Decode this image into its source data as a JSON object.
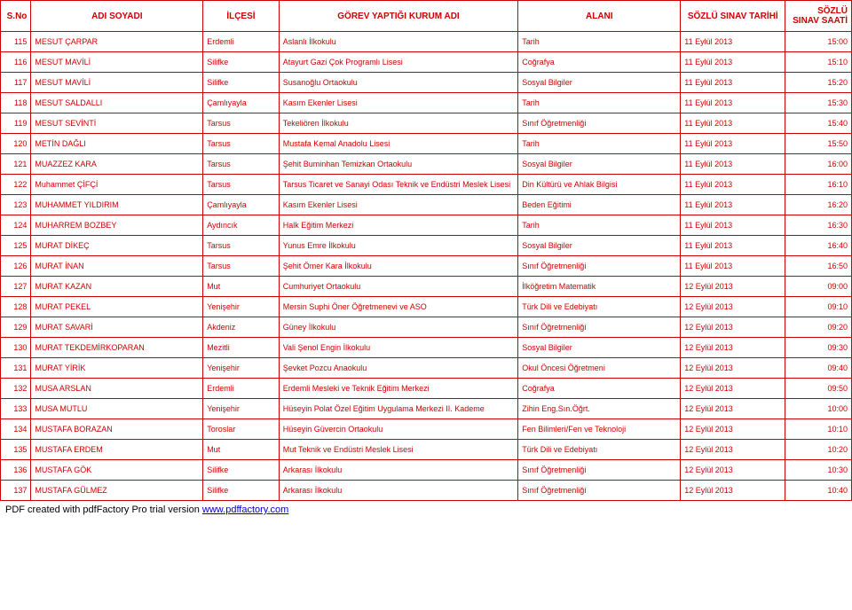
{
  "columns": [
    "S.No",
    "ADI SOYADI",
    "İLÇESİ",
    "GÖREV YAPTIĞI KURUM ADI",
    "ALANI",
    "SÖZLÜ SINAV TARİHİ",
    "SÖZLÜ SINAV SAATİ"
  ],
  "rows": [
    [
      "115",
      "MESUT ÇARPAR",
      "Erdemli",
      "Aslanlı İlkokulu",
      "Tarih",
      "11 Eylül 2013",
      "15:00"
    ],
    [
      "116",
      "MESUT MAVİLİ",
      "Silifke",
      "Atayurt Gazi Çok Programlı Lisesi",
      "Coğrafya",
      "11 Eylül 2013",
      "15:10"
    ],
    [
      "117",
      "MESUT MAVİLİ",
      "Silifke",
      "Susanoğlu Ortaokulu",
      "Sosyal Bilgiler",
      "11 Eylül 2013",
      "15:20"
    ],
    [
      "118",
      "MESUT SALDALLI",
      "Çamlıyayla",
      "Kasım Ekenler Lisesi",
      "Tarih",
      "11 Eylül 2013",
      "15:30"
    ],
    [
      "119",
      "MESUT SEVİNTİ",
      "Tarsus",
      "Tekeliören İlkokulu",
      "Sınıf Öğretmenliği",
      "11 Eylül 2013",
      "15:40"
    ],
    [
      "120",
      "METİN DAĞLI",
      "Tarsus",
      "Mustafa Kemal Anadolu Lisesi",
      "Tarih",
      "11 Eylül 2013",
      "15:50"
    ],
    [
      "121",
      "MUAZZEZ KARA",
      "Tarsus",
      "Şehit Buminhan Temizkan Ortaokulu",
      "Sosyal Bilgiler",
      "11 Eylül 2013",
      "16:00"
    ],
    [
      "122",
      "Muhammet ÇİFÇİ",
      "Tarsus",
      "Tarsus Ticaret ve Sanayi Odası Teknik ve Endüstri Meslek Lisesi",
      "Din Kültürü ve Ahlak Bilgisi",
      "11 Eylül 2013",
      "16:10"
    ],
    [
      "123",
      "MUHAMMET YILDIRIM",
      "Çamlıyayla",
      "Kasım Ekenler Lisesi",
      "Beden Eğitimi",
      "11 Eylül 2013",
      "16:20"
    ],
    [
      "124",
      "MUHARREM BOZBEY",
      "Aydıncık",
      "Halk Eğitim Merkezi",
      "Tarih",
      "11 Eylül 2013",
      "16:30"
    ],
    [
      "125",
      "MURAT DİKEÇ",
      "Tarsus",
      "Yunus Emre İlkokulu",
      "Sosyal Bilgiler",
      "11 Eylül 2013",
      "16:40"
    ],
    [
      "126",
      "MURAT İNAN",
      "Tarsus",
      "Şehit Ömer Kara İlkokulu",
      "Sınıf Öğretmenliği",
      "11 Eylül 2013",
      "16:50"
    ],
    [
      "127",
      "MURAT KAZAN",
      "Mut",
      "Cumhuriyet Ortaokulu",
      "İlköğretim Matematik",
      "12 Eylül 2013",
      "09:00"
    ],
    [
      "128",
      "MURAT PEKEL",
      "Yenişehir",
      "Mersin Suphi Öner Öğretmenevi ve ASO",
      "Türk Dili ve Edebiyatı",
      "12 Eylül 2013",
      "09:10"
    ],
    [
      "129",
      "MURAT SAVARİ",
      "Akdeniz",
      "Güney İlkokulu",
      "Sınıf Öğretmenliği",
      "12 Eylül 2013",
      "09:20"
    ],
    [
      "130",
      "MURAT TEKDEMİRKOPARAN",
      "Mezitli",
      "Vali Şenol Engin İlkokulu",
      "Sosyal Bilgiler",
      "12 Eylül 2013",
      "09:30"
    ],
    [
      "131",
      "MURAT YİRİK",
      "Yenişehir",
      "Şevket Pozcu Anaokulu",
      "Okul Öncesi Öğretmeni",
      "12 Eylül 2013",
      "09:40"
    ],
    [
      "132",
      "MUSA ARSLAN",
      "Erdemli",
      "Erdemli Mesleki ve Teknik Eğitim Merkezi",
      "Coğrafya",
      "12 Eylül 2013",
      "09:50"
    ],
    [
      "133",
      "MUSA MUTLU",
      "Yenişehir",
      "Hüseyin Polat Özel Eğitim Uygulama Merkezi II. Kademe",
      "Zihin Eng.Sın.Öğrt.",
      "12 Eylül 2013",
      "10:00"
    ],
    [
      "134",
      "MUSTAFA BORAZAN",
      "Toroslar",
      "Hüseyin Güvercin Ortaokulu",
      "Fen Bilimleri/Fen ve Teknoloji",
      "12 Eylül 2013",
      "10:10"
    ],
    [
      "135",
      "MUSTAFA ERDEM",
      "Mut",
      "Mut Teknik ve Endüstri Meslek Lisesi",
      "Türk Dili ve Edebiyatı",
      "12 Eylül 2013",
      "10:20"
    ],
    [
      "136",
      "MUSTAFA GÖK",
      "Silifke",
      "Arkarası İlkokulu",
      "Sınıf Öğretmenliği",
      "12 Eylül 2013",
      "10:30"
    ],
    [
      "137",
      "MUSTAFA GÜLMEZ",
      "Silifke",
      "Arkarası İlkokulu",
      "Sınıf Öğretmenliği",
      "12 Eylül 2013",
      "10:40"
    ]
  ],
  "footer": {
    "text": "PDF created with pdfFactory Pro trial version ",
    "link": "www.pdffactory.com"
  },
  "style": {
    "border_color": "#c00000",
    "text_color": "#c00000",
    "header_bg": "#ffffff",
    "body_bg": "#ffffff",
    "font_family": "Arial",
    "header_fontsize": 10,
    "cell_fontsize": 9
  }
}
